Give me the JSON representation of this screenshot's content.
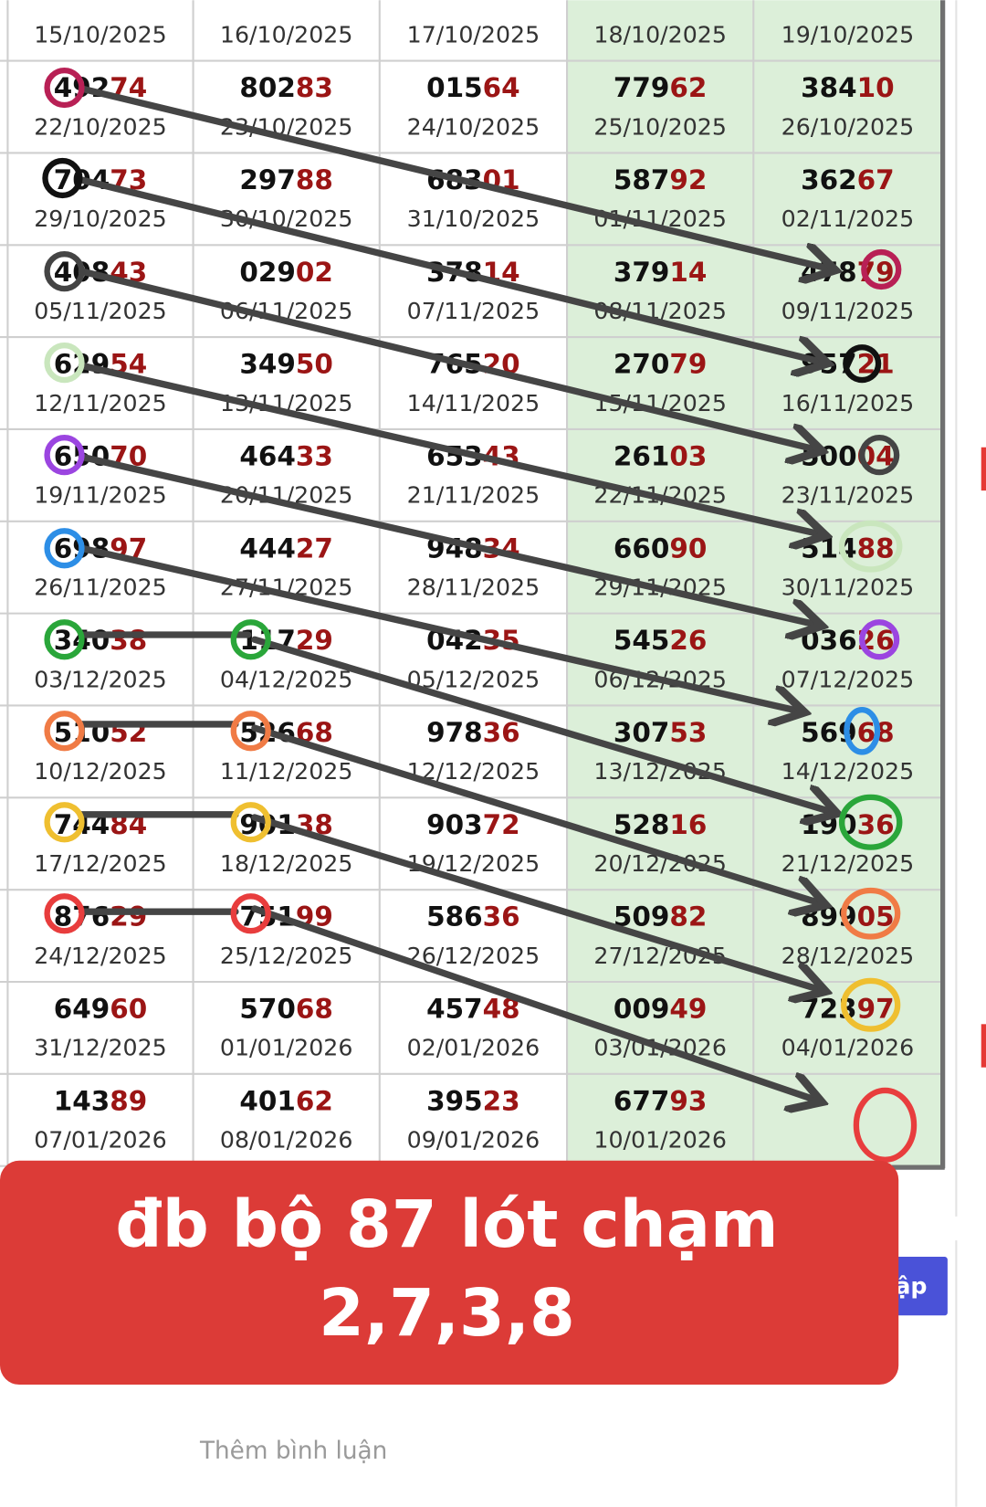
{
  "table": {
    "rows": [
      [
        {
          "date": "15/10/2025"
        },
        {
          "date": "16/10/2025"
        },
        {
          "date": "17/10/2025"
        },
        {
          "date": "18/10/2025"
        },
        {
          "date": "19/10/2025"
        }
      ],
      [
        {
          "number": "49274",
          "date": "22/10/2025"
        },
        {
          "number": "80283",
          "date": "23/10/2025"
        },
        {
          "number": "01564",
          "date": "24/10/2025"
        },
        {
          "number": "77962",
          "date": "25/10/2025"
        },
        {
          "number": "38410",
          "date": "26/10/2025"
        }
      ],
      [
        {
          "number": "70473",
          "date": "29/10/2025"
        },
        {
          "number": "29788",
          "date": "30/10/2025"
        },
        {
          "number": "68301",
          "date": "31/10/2025"
        },
        {
          "number": "58792",
          "date": "01/11/2025"
        },
        {
          "number": "36267",
          "date": "02/11/2025"
        }
      ],
      [
        {
          "number": "40843",
          "date": "05/11/2025"
        },
        {
          "number": "02902",
          "date": "06/11/2025"
        },
        {
          "number": "37814",
          "date": "07/11/2025"
        },
        {
          "number": "37914",
          "date": "08/11/2025"
        },
        {
          "number": "47879",
          "date": "09/11/2025"
        }
      ],
      [
        {
          "number": "62954",
          "date": "12/11/2025"
        },
        {
          "number": "34950",
          "date": "13/11/2025"
        },
        {
          "number": "76520",
          "date": "14/11/2025"
        },
        {
          "number": "27079",
          "date": "15/11/2025"
        },
        {
          "number": "95721",
          "date": "16/11/2025"
        }
      ],
      [
        {
          "number": "65070",
          "date": "19/11/2025"
        },
        {
          "number": "46433",
          "date": "20/11/2025"
        },
        {
          "number": "65343",
          "date": "21/11/2025"
        },
        {
          "number": "26103",
          "date": "22/11/2025"
        },
        {
          "number": "50004",
          "date": "23/11/2025"
        }
      ],
      [
        {
          "number": "69897",
          "date": "26/11/2025"
        },
        {
          "number": "44427",
          "date": "27/11/2025"
        },
        {
          "number": "94834",
          "date": "28/11/2025"
        },
        {
          "number": "66090",
          "date": "29/11/2025"
        },
        {
          "number": "51488",
          "date": "30/11/2025"
        }
      ],
      [
        {
          "number": "34038",
          "date": "03/12/2025"
        },
        {
          "number": "11729",
          "date": "04/12/2025"
        },
        {
          "number": "04235",
          "date": "05/12/2025"
        },
        {
          "number": "54526",
          "date": "06/12/2025"
        },
        {
          "number": "03626",
          "date": "07/12/2025"
        }
      ],
      [
        {
          "number": "51052",
          "date": "10/12/2025"
        },
        {
          "number": "52668",
          "date": "11/12/2025"
        },
        {
          "number": "97836",
          "date": "12/12/2025"
        },
        {
          "number": "30753",
          "date": "13/12/2025"
        },
        {
          "number": "56968",
          "date": "14/12/2025"
        }
      ],
      [
        {
          "number": "74484",
          "date": "17/12/2025"
        },
        {
          "number": "90138",
          "date": "18/12/2025"
        },
        {
          "number": "90372",
          "date": "19/12/2025"
        },
        {
          "number": "52816",
          "date": "20/12/2025"
        },
        {
          "number": "19036",
          "date": "21/12/2025"
        }
      ],
      [
        {
          "number": "87629",
          "date": "24/12/2025"
        },
        {
          "number": "75199",
          "date": "25/12/2025"
        },
        {
          "number": "58636",
          "date": "26/12/2025"
        },
        {
          "number": "50982",
          "date": "27/12/2025"
        },
        {
          "number": "89905",
          "date": "28/12/2025"
        }
      ],
      [
        {
          "number": "64960",
          "date": "31/12/2025"
        },
        {
          "number": "57068",
          "date": "01/01/2026"
        },
        {
          "number": "45748",
          "date": "02/01/2026"
        },
        {
          "number": "00949",
          "date": "03/01/2026"
        },
        {
          "number": "72397",
          "date": "04/01/2026"
        }
      ],
      [
        {
          "number": "14389",
          "date": "07/01/2026"
        },
        {
          "number": "40162",
          "date": "08/01/2026"
        },
        {
          "number": "39523",
          "date": "09/01/2026"
        },
        {
          "number": "67793",
          "date": "10/01/2026"
        },
        null
      ]
    ]
  },
  "banner": {
    "line1": "đb bộ 87 lót chạm",
    "line2": "2,7,3,8"
  },
  "button": {
    "label": "ập"
  },
  "comment": {
    "placeholder": "Thêm bình luận"
  }
}
